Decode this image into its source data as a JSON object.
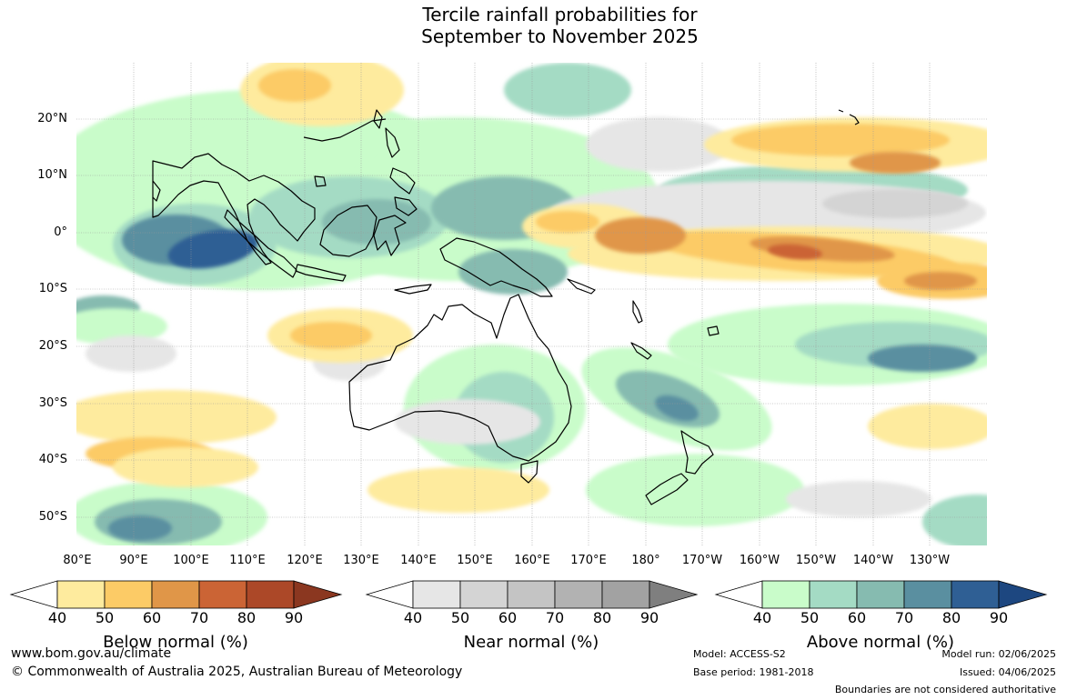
{
  "title": {
    "line1": "Tercile rainfall probabilities for",
    "line2": "September to November 2025"
  },
  "lat_labels": [
    "20°N",
    "10°N",
    "0°",
    "10°S",
    "20°S",
    "30°S",
    "40°S",
    "50°S"
  ],
  "lon_labels": [
    "80°E",
    "90°E",
    "100°E",
    "110°E",
    "120°E",
    "130°E",
    "140°E",
    "150°E",
    "160°E",
    "170°E",
    "180°",
    "170°W",
    "160°W",
    "150°W",
    "140°W",
    "130°W"
  ],
  "colorbars": [
    {
      "label": "Below normal (%)",
      "ticks": [
        "40",
        "50",
        "60",
        "70",
        "80",
        "90"
      ],
      "colors": [
        "#ffffff",
        "#feeb9e",
        "#fccb66",
        "#e09648",
        "#cb6435",
        "#ac4828",
        "#8b3720"
      ]
    },
    {
      "label": "Near normal (%)",
      "ticks": [
        "40",
        "50",
        "60",
        "70",
        "80",
        "90"
      ],
      "colors": [
        "#ffffff",
        "#e6e6e6",
        "#d4d4d4",
        "#c4c4c4",
        "#b2b2b2",
        "#a2a2a2",
        "#7f7f7f"
      ]
    },
    {
      "label": "Above normal (%)",
      "ticks": [
        "40",
        "50",
        "60",
        "70",
        "80",
        "90"
      ],
      "colors": [
        "#ffffff",
        "#c9fcca",
        "#a4dbc4",
        "#86bbb0",
        "#5a8fa0",
        "#2f5f94",
        "#1d4780"
      ]
    }
  ],
  "footer": {
    "url": "www.bom.gov.au/climate",
    "copyright": "© Commonwealth of Australia 2025, Australian Bureau of Meteorology",
    "model": "Model: ACCESS-S2",
    "base_period": "Base period: 1981-2018",
    "model_run": "Model run: 02/06/2025",
    "issued": "Issued: 04/06/2025",
    "disclaimer": "Boundaries are not considered authoritative"
  },
  "colors": {
    "below": [
      "#feeb9e",
      "#fccb66",
      "#e09648",
      "#cb6435"
    ],
    "near": [
      "#e6e6e6",
      "#d4d4d4",
      "#b2b2b2"
    ],
    "above": [
      "#c9fcca",
      "#a4dbc4",
      "#86bbb0",
      "#5a8fa0",
      "#2f5f94"
    ]
  }
}
